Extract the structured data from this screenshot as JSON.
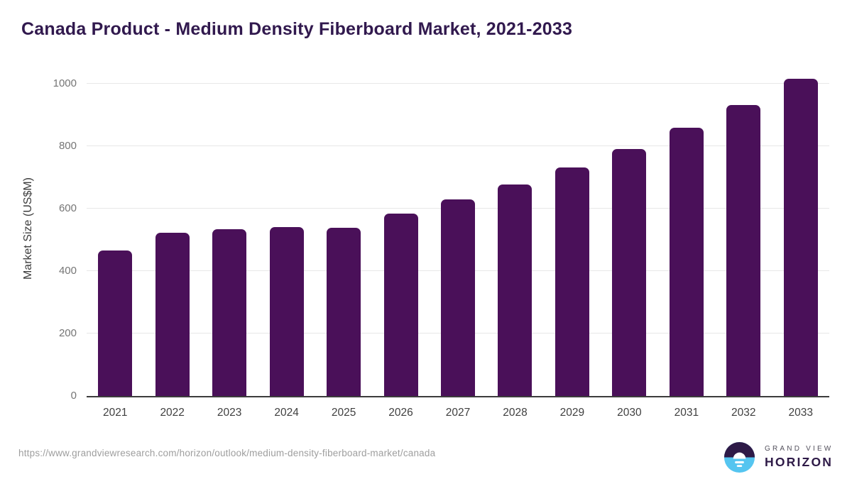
{
  "title": "Canada Product - Medium Density Fiberboard Market, 2021-2033",
  "footer": {
    "source_url": "https://www.grandviewresearch.com/horizon/outlook/medium-density-fiberboard-market/canada",
    "logo": {
      "line1": "GRAND VIEW",
      "line2": "HORIZON"
    }
  },
  "colors": {
    "bar": "#4A1059",
    "title": "#31194E",
    "axis_line": "#3C3C3C",
    "gridline": "#E7E7E7",
    "y_tick_label": "#757575",
    "x_tick_label": "#3F3F3F",
    "url_text": "#9E9E9E",
    "logo_dark": "#2E1A47",
    "logo_blue": "#55C5F0"
  },
  "chart_data": {
    "type": "bar",
    "title": "Canada Product - Medium Density Fiberboard Market, 2021-2033",
    "categories": [
      "2021",
      "2022",
      "2023",
      "2024",
      "2025",
      "2026",
      "2027",
      "2028",
      "2029",
      "2030",
      "2031",
      "2032",
      "2033"
    ],
    "values": [
      467,
      523,
      534,
      541,
      538,
      585,
      629,
      678,
      732,
      791,
      859,
      932,
      1017
    ],
    "xlabel": "",
    "ylabel": "Market Size (US$M)",
    "yticks": [
      0,
      200,
      400,
      600,
      800,
      1000
    ],
    "ylim": [
      0,
      1050
    ],
    "grid": "horizontal",
    "legend": "none",
    "bar_color": "#4A1059"
  }
}
